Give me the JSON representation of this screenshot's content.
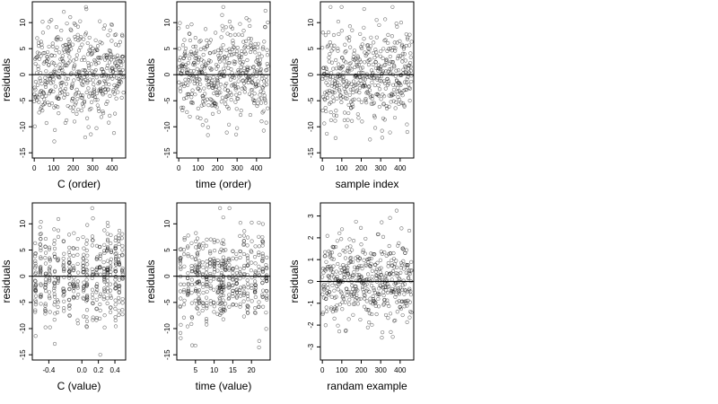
{
  "chart_data": [
    {
      "type": "scatter",
      "xlabel": "C (order)",
      "ylabel": "residuals",
      "xlim": [
        -10,
        470
      ],
      "ylim": [
        -16,
        14
      ],
      "xticks": [
        0,
        100,
        200,
        300,
        400
      ],
      "yticks": [
        -15,
        -10,
        -5,
        0,
        5,
        10
      ],
      "ytick_labels": [
        "-15",
        "-10",
        "-5",
        "0",
        "5",
        "10"
      ],
      "x_generator": "index",
      "x_generator_note": "",
      "pattern": "uniform",
      "n": 460,
      "y_scale": 4.5,
      "y_range": [
        -15,
        13
      ],
      "seed": 11,
      "hline": 0,
      "grid": false,
      "legend": "none"
    },
    {
      "type": "scatter",
      "xlabel": "time (order)",
      "ylabel": "residuals",
      "xlim": [
        -10,
        470
      ],
      "ylim": [
        -16,
        14
      ],
      "xticks": [
        0,
        100,
        200,
        300,
        400
      ],
      "yticks": [
        -15,
        -10,
        -5,
        0,
        5,
        10
      ],
      "ytick_labels": [
        "-15",
        "-10",
        "-5",
        "0",
        "5",
        "10"
      ],
      "x_generator": "index",
      "pattern": "uniform",
      "n": 460,
      "y_scale": 4.5,
      "y_range": [
        -15,
        13
      ],
      "seed": 23,
      "hline": 0,
      "grid": false,
      "legend": "none"
    },
    {
      "type": "scatter",
      "xlabel": "sample index",
      "ylabel": "residuals",
      "xlim": [
        -10,
        470
      ],
      "ylim": [
        -16,
        14
      ],
      "xticks": [
        0,
        100,
        200,
        300,
        400
      ],
      "yticks": [
        -15,
        -10,
        -5,
        0,
        5,
        10
      ],
      "ytick_labels": [
        "-15",
        "-10",
        "-5",
        "0",
        "5",
        "10"
      ],
      "x_generator": "index",
      "pattern": "uniform",
      "n": 460,
      "y_scale": 4.5,
      "y_range": [
        -15,
        13
      ],
      "seed": 37,
      "hline": 0,
      "grid": false,
      "legend": "none"
    },
    {
      "type": "scatter",
      "xlabel": "C (value)",
      "ylabel": "residuals",
      "xlim": [
        -0.6,
        0.53
      ],
      "ylim": [
        -16,
        14
      ],
      "xticks": [
        -0.4,
        0.0,
        0.2,
        0.4
      ],
      "xtick_labels": [
        "-0.4",
        "0.0",
        "0.2",
        "0.4"
      ],
      "yticks": [
        -15,
        -10,
        -5,
        0,
        5,
        10
      ],
      "ytick_labels": [
        "-15",
        "-10",
        "-5",
        "0",
        "5",
        "10"
      ],
      "x_generator": "clusters",
      "x_clusters": [
        -0.56,
        -0.5,
        -0.44,
        -0.39,
        -0.33,
        -0.29,
        -0.22,
        -0.15,
        -0.1,
        -0.05,
        0.02,
        0.06,
        0.13,
        0.18,
        0.22,
        0.27,
        0.31,
        0.35,
        0.41,
        0.45,
        0.49
      ],
      "cluster_jitter": 0.006,
      "n": 460,
      "y_scale": 4.5,
      "y_range": [
        -15,
        13
      ],
      "seed": 53,
      "hline": 0,
      "grid": false,
      "legend": "none"
    },
    {
      "type": "scatter",
      "xlabel": "time (value)",
      "ylabel": "residuals",
      "xlim": [
        0,
        25
      ],
      "ylim": [
        -16,
        14
      ],
      "xticks": [
        5,
        10,
        15,
        20
      ],
      "yticks": [
        -15,
        -10,
        -5,
        0,
        5,
        10
      ],
      "ytick_labels": [
        "-15",
        "-10",
        "-5",
        "0",
        "5",
        "10"
      ],
      "x_generator": "clusters",
      "x_clusters": [
        1,
        2,
        3,
        4,
        5,
        5.5,
        6,
        7,
        8,
        9,
        10,
        11,
        11.5,
        12,
        12.5,
        13,
        14,
        15,
        16,
        17,
        18,
        19,
        20,
        21,
        22,
        23,
        24
      ],
      "cluster_jitter": 0.12,
      "n": 460,
      "y_scale": 4.5,
      "y_range": [
        -15,
        13
      ],
      "seed": 71,
      "hline": 0,
      "grid": false,
      "legend": "none"
    },
    {
      "type": "scatter",
      "xlabel": "randam example",
      "ylabel": "residuals",
      "xlim": [
        -10,
        470
      ],
      "ylim": [
        -3.6,
        3.6
      ],
      "xticks": [
        0,
        100,
        200,
        300,
        400
      ],
      "yticks": [
        -3,
        -2,
        -1,
        0,
        1,
        2,
        3
      ],
      "ytick_labels": [
        "-3",
        "-2",
        "-1",
        "0",
        "1",
        "2",
        "3"
      ],
      "x_generator": "index",
      "pattern": "uniform",
      "n": 460,
      "y_scale": 1.0,
      "y_range": [
        -3.3,
        3.3
      ],
      "seed": 97,
      "hline": 0,
      "grid": false,
      "legend": "none"
    }
  ]
}
